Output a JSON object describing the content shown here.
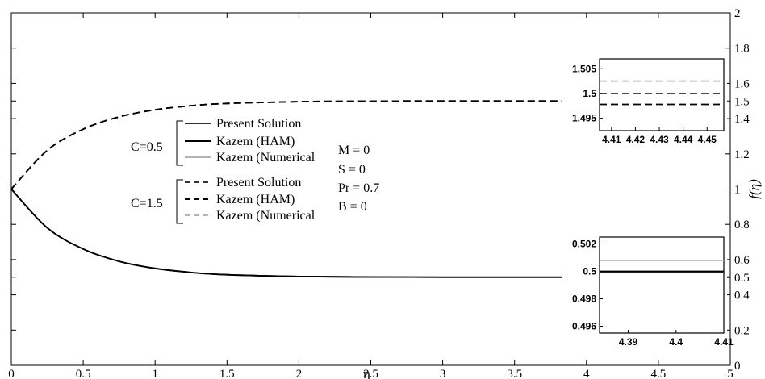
{
  "chart_data": [
    {
      "type": "line",
      "role": "main",
      "xlabel": "η",
      "ylabel": "f(η)",
      "xlim": [
        0,
        5
      ],
      "ylim": [
        0,
        2
      ],
      "xticks": [
        0,
        0.5,
        1,
        1.5,
        2,
        2.5,
        3,
        3.5,
        4,
        4.5,
        5
      ],
      "xtick_labels": [
        "0",
        "0.5",
        "1",
        "1.5",
        "2",
        "2.5",
        "3",
        "3.5",
        "4",
        "4.5",
        "5"
      ],
      "yticks": [
        0,
        0.2,
        0.4,
        0.5,
        0.6,
        0.8,
        1,
        1.2,
        1.4,
        1.5,
        1.6,
        1.8,
        2
      ],
      "ytick_labels": [
        "0",
        "0.2",
        "0.4",
        "0.5",
        "0.6",
        "0.8",
        "1",
        "1.2",
        "1.4",
        "1.5",
        "1.6",
        "1.8",
        "2"
      ],
      "y_axis_side": "right",
      "grid": false,
      "x": [
        0,
        0.25,
        0.5,
        0.75,
        1,
        1.25,
        1.5,
        2,
        2.5,
        3,
        3.5,
        4,
        4.5,
        5
      ],
      "series": [
        {
          "name": "Present Solution",
          "group": "C=0.5",
          "style": "solid",
          "color": "#333333",
          "values": [
            1,
            0.78,
            0.66,
            0.59,
            0.55,
            0.527,
            0.514,
            0.504,
            0.501,
            0.5,
            0.5,
            0.5,
            0.5,
            0.5
          ]
        },
        {
          "name": "Kazem (HAM)",
          "group": "C=0.5",
          "style": "solid",
          "color": "#000000",
          "values": [
            1,
            0.78,
            0.66,
            0.59,
            0.55,
            0.527,
            0.514,
            0.504,
            0.501,
            0.5,
            0.5,
            0.5,
            0.5,
            0.5
          ]
        },
        {
          "name": "Kazem (Numerical",
          "group": "C=0.5",
          "style": "solid",
          "color": "#b4b4b4",
          "values": [
            1,
            0.78,
            0.66,
            0.59,
            0.55,
            0.527,
            0.514,
            0.504,
            0.501,
            0.5,
            0.5,
            0.5,
            0.5,
            0.5
          ]
        },
        {
          "name": "Present Solution",
          "group": "C=1.5",
          "style": "dashed",
          "color": "#333333",
          "values": [
            1,
            1.22,
            1.34,
            1.41,
            1.45,
            1.473,
            1.486,
            1.496,
            1.499,
            1.5,
            1.5,
            1.5,
            1.5,
            1.5
          ]
        },
        {
          "name": "Kazem (HAM)",
          "group": "C=1.5",
          "style": "dashed",
          "color": "#000000",
          "values": [
            1,
            1.22,
            1.34,
            1.41,
            1.45,
            1.473,
            1.486,
            1.496,
            1.499,
            1.5,
            1.5,
            1.5,
            1.5,
            1.5
          ]
        },
        {
          "name": "Kazem (Numerical",
          "group": "C=1.5",
          "style": "dashed",
          "color": "#b4b4b4",
          "values": [
            1,
            1.22,
            1.34,
            1.41,
            1.45,
            1.473,
            1.486,
            1.496,
            1.499,
            1.5,
            1.5,
            1.5,
            1.5,
            1.5
          ]
        }
      ],
      "legend": {
        "placement": "center-left",
        "groups": [
          {
            "label": "C=0.5",
            "entries": [
              "Present Solution",
              "Kazem (HAM)",
              "Kazem (Numerical"
            ]
          },
          {
            "label": "C=1.5",
            "entries": [
              "Present Solution",
              "Kazem (HAM)",
              "Kazem (Numerical"
            ]
          }
        ]
      },
      "annotations": [
        "M = 0",
        "S  = 0",
        "Pr = 0.7",
        "B  = 0"
      ]
    },
    {
      "type": "line",
      "role": "inset-top",
      "xlim": [
        4.405,
        4.457
      ],
      "ylim": [
        1.4925,
        1.507
      ],
      "xticks": [
        4.41,
        4.42,
        4.43,
        4.44,
        4.45
      ],
      "xtick_labels": [
        "4.41",
        "4.42",
        "4.43",
        "4.44",
        "4.45"
      ],
      "yticks": [
        1.495,
        1.5,
        1.505
      ],
      "ytick_labels": [
        "1.495",
        "1.5",
        "1.505"
      ],
      "series": [
        {
          "name": "Kazem (Numerical",
          "style": "dashed",
          "color": "#b4b4b4",
          "x": [
            4.405,
            4.457
          ],
          "values": [
            1.5025,
            1.5025
          ]
        },
        {
          "name": "Present Solution",
          "style": "dashed",
          "color": "#333333",
          "x": [
            4.405,
            4.457
          ],
          "values": [
            1.5,
            1.5
          ]
        },
        {
          "name": "Kazem (HAM)",
          "style": "dashed",
          "color": "#000000",
          "x": [
            4.405,
            4.457
          ],
          "values": [
            1.4978,
            1.4978
          ]
        }
      ]
    },
    {
      "type": "line",
      "role": "inset-bottom",
      "xlim": [
        4.384,
        4.41
      ],
      "ylim": [
        0.4955,
        0.5025
      ],
      "xticks": [
        4.39,
        4.4,
        4.41
      ],
      "xtick_labels": [
        "4.39",
        "4.4",
        "4.41"
      ],
      "yticks": [
        0.496,
        0.498,
        0.5,
        0.502
      ],
      "ytick_labels": [
        "0.496",
        "0.498",
        "0.5",
        "0.502"
      ],
      "series": [
        {
          "name": "Kazem (Numerical",
          "style": "solid",
          "color": "#b4b4b4",
          "x": [
            4.384,
            4.41
          ],
          "values": [
            0.5008,
            0.5008
          ]
        },
        {
          "name": "Present Solution",
          "style": "solid",
          "color": "#333333",
          "x": [
            4.384,
            4.41
          ],
          "values": [
            0.49995,
            0.49995
          ]
        },
        {
          "name": "Kazem (HAM)",
          "style": "solid",
          "color": "#000000",
          "x": [
            4.384,
            4.41
          ],
          "values": [
            0.5,
            0.5
          ]
        }
      ]
    }
  ]
}
